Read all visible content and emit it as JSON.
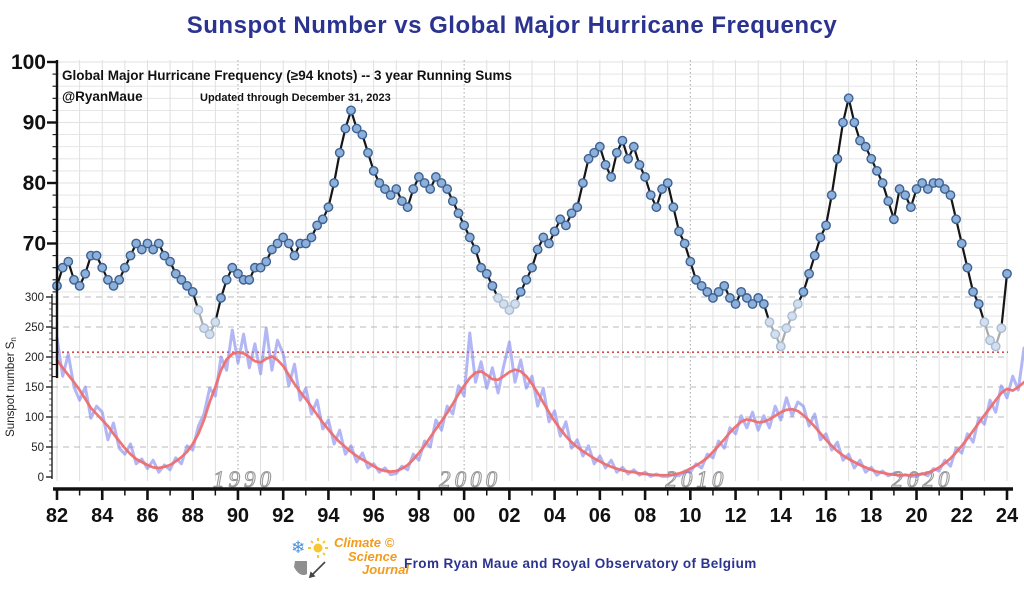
{
  "title": "Sunspot Number vs Global Major Hurricane Frequency",
  "annotations": {
    "series_label": "Global Major Hurricane Frequency (≥94 knots)  -- 3 year Running Sums",
    "credit": "@RyanMaue",
    "updated": "Updated through December 31, 2023"
  },
  "footer": {
    "logo_line1": "Climate",
    "copyright": "©",
    "logo_line2": "Science",
    "logo_line3": "Journal",
    "attribution": "From Ryan Maue and Royal Observatory of Belgium"
  },
  "colors": {
    "navy": "#2b3390",
    "orange": "#f29b1c",
    "hurricane_line": "#151515",
    "hurricane_line_light": "#a9a9a9",
    "dot_fill": "#8cb0da",
    "dot_edge": "#3d6191",
    "dot_light_fill": "#d3dfee",
    "dot_light_edge": "#a8bcd2",
    "sunspot_monthly": "#8085ec",
    "sunspot_smoothed": "#ef6e6e",
    "reference_line": "#d84848",
    "grid": "#e2e2e2",
    "grid_dashed": "#b8b8b8",
    "decade_label": "#999999",
    "axis": "#111111"
  },
  "chart_data": {
    "type": "line",
    "title": "Sunspot Number vs Global Major Hurricane Frequency",
    "x_axis": {
      "tick_labels": [
        "82",
        "84",
        "86",
        "88",
        "90",
        "92",
        "94",
        "96",
        "98",
        "00",
        "02",
        "04",
        "06",
        "08",
        "10",
        "12",
        "14",
        "16",
        "18",
        "20",
        "22",
        "24"
      ],
      "first_tick_year": 1982,
      "tick_step_years": 2,
      "range_years": [
        1982,
        2024
      ],
      "decade_labels": [
        {
          "text": "1990",
          "year": 1990
        },
        {
          "text": "2000",
          "year": 2000
        },
        {
          "text": "2010",
          "year": 2010
        },
        {
          "text": "2020",
          "year": 2020
        }
      ]
    },
    "hurricane_axis": {
      "tick_labels": [
        100,
        90,
        80,
        70
      ],
      "minor_step": 2,
      "range": [
        48,
        100
      ]
    },
    "sunspot_axis": {
      "label": "Sunspot number S",
      "label_sub": "n",
      "tick_labels": [
        300,
        250,
        200,
        150,
        100,
        50,
        0
      ],
      "minor_step": 10,
      "range": [
        0,
        300
      ]
    },
    "reference_line": {
      "value": 208,
      "axis": "sunspot",
      "style": "dotted"
    },
    "series": [
      {
        "name": "Global major hurricane frequency, 3-year running sum",
        "axis": "hurricane",
        "style": "line-markers",
        "t0": 1982.0,
        "dt": 0.25,
        "values": [
          63,
          66,
          67,
          64,
          63,
          65,
          68,
          68,
          66,
          64,
          63,
          64,
          66,
          68,
          70,
          69,
          70,
          69,
          70,
          68,
          67,
          65,
          64,
          63,
          62,
          59,
          56,
          55,
          57,
          61,
          64,
          66,
          65,
          64,
          64,
          66,
          66,
          67,
          69,
          70,
          71,
          70,
          68,
          70,
          70,
          71,
          73,
          74,
          76,
          80,
          85,
          89,
          92,
          89,
          88,
          85,
          82,
          80,
          79,
          78,
          79,
          77,
          76,
          79,
          81,
          80,
          79,
          81,
          80,
          79,
          77,
          75,
          73,
          71,
          69,
          66,
          65,
          63,
          61,
          60,
          59,
          60,
          62,
          64,
          66,
          69,
          71,
          70,
          72,
          74,
          73,
          75,
          76,
          80,
          84,
          85,
          86,
          83,
          81,
          85,
          87,
          84,
          86,
          83,
          81,
          78,
          76,
          79,
          80,
          76,
          72,
          70,
          67,
          64,
          63,
          62,
          61,
          62,
          63,
          61,
          60,
          62,
          61,
          60,
          61,
          60,
          57,
          55,
          53,
          56,
          58,
          60,
          62,
          65,
          68,
          71,
          73,
          78,
          84,
          90,
          94,
          90,
          87,
          86,
          84,
          82,
          80,
          77,
          74,
          79,
          78,
          76,
          79,
          80,
          79,
          80,
          80,
          79,
          78,
          74,
          70,
          66,
          62,
          60,
          57,
          54,
          53,
          56,
          65
        ],
        "light_marker_ranges": [
          [
            1988.2,
            1989.2
          ],
          [
            2001.5,
            2002.3
          ],
          [
            2013.4,
            2014.8
          ],
          [
            2022.8,
            2023.9
          ]
        ]
      },
      {
        "name": "Sunspot number, monthly",
        "axis": "sunspot",
        "style": "line",
        "t0": 1982.0,
        "dt": 0.25,
        "values": [
          232,
          168,
          205,
          150,
          128,
          150,
          98,
          118,
          108,
          62,
          90,
          48,
          38,
          55,
          22,
          30,
          14,
          28,
          8,
          20,
          12,
          32,
          22,
          52,
          45,
          85,
          105,
          148,
          135,
          200,
          178,
          245,
          190,
          238,
          182,
          222,
          172,
          248,
          178,
          228,
          205,
          152,
          188,
          128,
          148,
          105,
          128,
          80,
          95,
          55,
          78,
          38,
          52,
          25,
          40,
          15,
          22,
          8,
          15,
          4,
          6,
          18,
          12,
          38,
          28,
          60,
          50,
          95,
          78,
          118,
          105,
          152,
          135,
          240,
          158,
          192,
          148,
          182,
          140,
          185,
          225,
          158,
          195,
          148,
          168,
          118,
          148,
          92,
          110,
          68,
          92,
          48,
          62,
          35,
          52,
          22,
          35,
          15,
          28,
          8,
          16,
          5,
          12,
          3,
          8,
          1,
          5,
          1,
          1,
          4,
          2,
          10,
          8,
          22,
          15,
          38,
          32,
          60,
          48,
          82,
          72,
          102,
          82,
          108,
          78,
          102,
          82,
          118,
          95,
          132,
          102,
          125,
          118,
          85,
          105,
          62,
          72,
          45,
          58,
          28,
          38,
          15,
          28,
          8,
          16,
          3,
          10,
          2,
          6,
          1,
          4,
          1,
          1,
          6,
          2,
          14,
          10,
          28,
          18,
          48,
          40,
          72,
          58,
          98,
          88,
          128,
          108,
          152,
          132,
          168,
          145,
          215
        ]
      },
      {
        "name": "Sunspot number, smoothed",
        "axis": "sunspot",
        "style": "line",
        "t0": 1982.0,
        "dt": 0.25,
        "values": [
          195,
          182,
          170,
          158,
          145,
          130,
          115,
          105,
          95,
          85,
          72,
          60,
          48,
          38,
          30,
          25,
          20,
          16,
          15,
          17,
          20,
          26,
          33,
          42,
          55,
          72,
          95,
          125,
          150,
          178,
          196,
          205,
          208,
          206,
          200,
          193,
          191,
          197,
          201,
          195,
          185,
          170,
          155,
          142,
          130,
          117,
          104,
          91,
          79,
          68,
          58,
          50,
          42,
          35,
          29,
          24,
          18,
          13,
          10,
          9,
          10,
          14,
          20,
          29,
          40,
          52,
          66,
          80,
          93,
          107,
          122,
          138,
          152,
          165,
          174,
          176,
          170,
          163,
          162,
          168,
          175,
          179,
          176,
          168,
          155,
          140,
          124,
          108,
          93,
          80,
          68,
          58,
          50,
          43,
          37,
          31,
          26,
          21,
          17,
          14,
          11,
          9,
          8,
          6,
          5,
          4,
          3,
          3,
          3,
          4,
          6,
          9,
          14,
          19,
          25,
          32,
          42,
          52,
          63,
          74,
          84,
          92,
          96,
          94,
          91,
          92,
          96,
          102,
          108,
          112,
          113,
          110,
          103,
          94,
          84,
          73,
          62,
          52,
          43,
          36,
          30,
          25,
          20,
          16,
          12,
          9,
          7,
          5,
          4,
          3,
          3,
          3,
          4,
          5,
          7,
          11,
          16,
          23,
          31,
          41,
          52,
          64,
          77,
          90,
          103,
          115,
          128,
          140,
          147,
          144,
          150,
          158
        ]
      }
    ]
  }
}
